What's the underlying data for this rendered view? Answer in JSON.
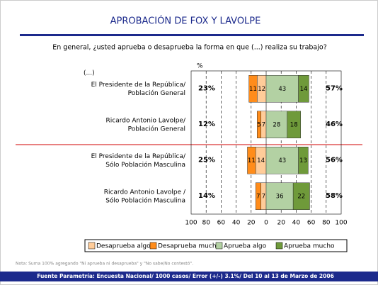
{
  "chart_data": {
    "type": "diverging-bar",
    "title": "APROBACIÓN DE FOX Y LAVOLPE",
    "subtitle": "En general, ¿usted aprueba o desaprueba la forma en que (...) realiza su trabajo?",
    "category_header": "(...)",
    "left_total_header": "%",
    "categories": [
      [
        "El Presidente de la República/",
        "Población General"
      ],
      [
        "Ricardo Antonio Lavolpe/",
        "Población General"
      ],
      [
        "El Presidente de la República/",
        "Sólo Población Masculina"
      ],
      [
        "Ricardo Antonio Lavolpe /",
        "Sólo Población Masculina"
      ]
    ],
    "left_totals": [
      "23%",
      "12%",
      "25%",
      "14%"
    ],
    "right_totals": [
      "57%",
      "46%",
      "56%",
      "58%"
    ],
    "series": [
      {
        "name": "Desaprueba algo",
        "color": "#ffcc99",
        "values": [
          -12,
          -7,
          -14,
          -7
        ],
        "value_labels": [
          "12",
          "7",
          "14",
          "7"
        ]
      },
      {
        "name": "Desaprueba mucho",
        "color": "#ff8c1a",
        "values": [
          -11,
          -5,
          -11,
          -7
        ],
        "value_labels": [
          "11",
          "5",
          "11",
          "7"
        ]
      },
      {
        "name": "Aprueba algo",
        "color": "#b3d1a3",
        "values": [
          43,
          28,
          43,
          36
        ]
      },
      {
        "name": "Aprueba mucho",
        "color": "#6f9a3a",
        "values": [
          14,
          18,
          13,
          22
        ]
      }
    ],
    "xlim": [
      -100,
      100
    ],
    "xticks": [
      {
        "value": -100,
        "label": "100"
      },
      {
        "value": -80,
        "label": "80"
      },
      {
        "value": -60,
        "label": "60"
      },
      {
        "value": -40,
        "label": "40"
      },
      {
        "value": -20,
        "label": "20"
      },
      0,
      20,
      40,
      60,
      80,
      100
    ],
    "grid": true,
    "note": "Nota: Suma 100% agregando \"Ni aprueba ni desaprueba\" y \"No sabe/No contestó\".",
    "source": "Fuente Parametría: Encuesta Nacional/ 1000 casos/ Error (+/-) 3.1%/ Del 10 al 13 de Marzo de 2006"
  }
}
